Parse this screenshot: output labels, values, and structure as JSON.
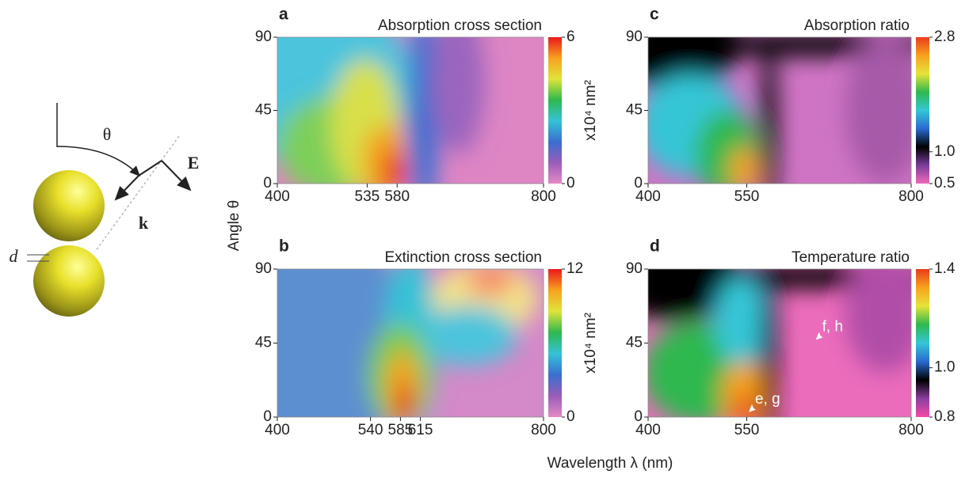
{
  "diagram": {
    "theta": "θ",
    "e_field": "E",
    "k_vector": "k",
    "gap": "d"
  },
  "x_label": "Wavelength  λ  (nm)",
  "y_label": "Angle θ",
  "chart_data": [
    {
      "type": "heatmap",
      "panel": "a",
      "title": "Absorption cross section",
      "xlim": [
        400,
        800
      ],
      "xticks": [
        400,
        535,
        580,
        800
      ],
      "ylim": [
        0,
        90
      ],
      "yticks": [
        0,
        45,
        90
      ],
      "clim": [
        0,
        6
      ],
      "cticks": [
        0,
        6
      ],
      "clabel": "x10⁴ nm²",
      "colormap": [
        "#e58ac6",
        "#9a5cb8",
        "#3a6fd0",
        "#35c2d6",
        "#2fb84e",
        "#dfe43a",
        "#f7a21e",
        "#e8181c"
      ]
    },
    {
      "type": "heatmap",
      "panel": "b",
      "title": "Extinction cross section",
      "xlim": [
        400,
        800
      ],
      "xticks": [
        400,
        540,
        585,
        615,
        800
      ],
      "ylim": [
        0,
        90
      ],
      "yticks": [
        0,
        45,
        90
      ],
      "clim": [
        0,
        12
      ],
      "cticks": [
        0,
        12
      ],
      "clabel": "x10⁴ nm²",
      "colormap": [
        "#e58ac6",
        "#9a5cb8",
        "#3a6fd0",
        "#35c2d6",
        "#2fb84e",
        "#dfe43a",
        "#f7a21e",
        "#e8181c"
      ]
    },
    {
      "type": "heatmap",
      "panel": "c",
      "title": "Absorption ratio",
      "xlim": [
        400,
        800
      ],
      "xticks": [
        400,
        550,
        800
      ],
      "ylim": [
        0,
        90
      ],
      "yticks": [
        0,
        45,
        90
      ],
      "clim": [
        0.5,
        2.8
      ],
      "cticks": [
        0.5,
        {
          "value": 1,
          "label": "1.0"
        },
        2.8
      ],
      "colormap": [
        "#f06ab8",
        "#7a3d9a",
        "#000000",
        "#2a6ad0",
        "#35c6d6",
        "#2fb84e",
        "#e5e43a",
        "#f7a21e",
        "#ea3a1c"
      ]
    },
    {
      "type": "heatmap",
      "panel": "d",
      "title": "Temperature ratio",
      "xlim": [
        400,
        800
      ],
      "xticks": [
        400,
        550,
        800
      ],
      "ylim": [
        0,
        90
      ],
      "yticks": [
        0,
        45,
        90
      ],
      "clim": [
        0.8,
        1.4
      ],
      "cticks": [
        0.8,
        {
          "value": 1,
          "label": "1.0"
        },
        1.4
      ],
      "colormap": [
        "#f54aa8",
        "#8a3f9e",
        "#000000",
        "#2a6ad0",
        "#35c6d6",
        "#2fb84e",
        "#e5e43a",
        "#f7a21e",
        "#ea3a1c"
      ],
      "annotations": [
        {
          "text": "f, h",
          "x": 655,
          "y": 47
        },
        {
          "text": "e, g",
          "x": 553,
          "y": 3
        }
      ]
    }
  ]
}
